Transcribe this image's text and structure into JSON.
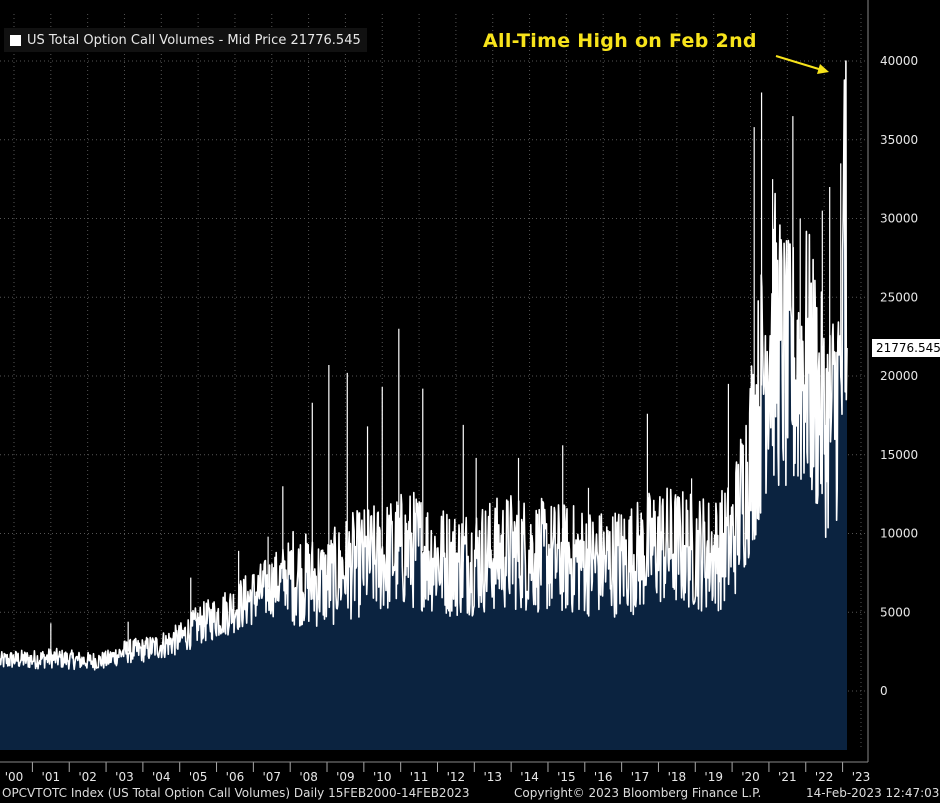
{
  "legend": {
    "label": "US Total Option Call Volumes - Mid Price 21776.545"
  },
  "annotation": {
    "text": "All-Time High on Feb 2nd",
    "color": "#f7e31b"
  },
  "last_value_label": "21776.545",
  "footer": {
    "left": "OPCVTOTC Index (US Total Option Call Volumes)  Daily 15FEB2000-14FEB2023",
    "center": "Copyright© 2023 Bloomberg Finance L.P.",
    "right": "14-Feb-2023 12:47:03"
  },
  "colors": {
    "background": "#000000",
    "area_fill": "#0b2340",
    "line": "#ffffff",
    "grid": "#555555"
  },
  "chart_data": {
    "type": "area",
    "title": "US Total Option Call Volumes - Mid Price 21776.545",
    "x_tick_labels": [
      "'00",
      "'01",
      "'02",
      "'03",
      "'04",
      "'05",
      "'06",
      "'07",
      "'08",
      "'09",
      "'10",
      "'11",
      "'12",
      "'13",
      "'14",
      "'15",
      "'16",
      "'17",
      "'18",
      "'19",
      "'20",
      "'21",
      "'22",
      "'23"
    ],
    "y_tick_labels": [
      "0",
      "5000",
      "10000",
      "15000",
      "20000",
      "25000",
      "30000",
      "35000",
      "40000"
    ],
    "ylim": [
      -3700,
      44000
    ],
    "grid": true,
    "series": [
      {
        "name": "US Total Option Call Volumes - Mid Price",
        "points": [
          [
            2000.12,
            1900
          ],
          [
            2000.5,
            2000
          ],
          [
            2001.0,
            2000
          ],
          [
            2001.5,
            2100
          ],
          [
            2002.0,
            2000
          ],
          [
            2002.5,
            1900
          ],
          [
            2003.0,
            1950
          ],
          [
            2003.5,
            2500
          ],
          [
            2004.0,
            2600
          ],
          [
            2004.5,
            2900
          ],
          [
            2005.0,
            3300
          ],
          [
            2005.5,
            4200
          ],
          [
            2006.0,
            4700
          ],
          [
            2006.5,
            5300
          ],
          [
            2007.0,
            6000
          ],
          [
            2007.5,
            6700
          ],
          [
            2008.0,
            7400
          ],
          [
            2008.5,
            7000
          ],
          [
            2009.0,
            6900
          ],
          [
            2009.5,
            7800
          ],
          [
            2010.0,
            8200
          ],
          [
            2010.5,
            8400
          ],
          [
            2011.0,
            8900
          ],
          [
            2011.5,
            9000
          ],
          [
            2012.0,
            8400
          ],
          [
            2012.5,
            8100
          ],
          [
            2013.0,
            8400
          ],
          [
            2013.5,
            8600
          ],
          [
            2014.0,
            8900
          ],
          [
            2014.5,
            8700
          ],
          [
            2015.0,
            8500
          ],
          [
            2015.5,
            8400
          ],
          [
            2016.0,
            8300
          ],
          [
            2016.5,
            8100
          ],
          [
            2017.0,
            8300
          ],
          [
            2017.5,
            8600
          ],
          [
            2018.0,
            9300
          ],
          [
            2018.5,
            9100
          ],
          [
            2019.0,
            8900
          ],
          [
            2019.5,
            8700
          ],
          [
            2020.0,
            9500
          ],
          [
            2020.25,
            12000
          ],
          [
            2020.5,
            15000
          ],
          [
            2020.75,
            18500
          ],
          [
            2021.0,
            23000
          ],
          [
            2021.25,
            22000
          ],
          [
            2021.5,
            20000
          ],
          [
            2021.75,
            20500
          ],
          [
            2022.0,
            21000
          ],
          [
            2022.25,
            19500
          ],
          [
            2022.5,
            17000
          ],
          [
            2022.75,
            17500
          ],
          [
            2023.0,
            20500
          ],
          [
            2023.09,
            40000
          ],
          [
            2023.12,
            21776.545
          ]
        ]
      }
    ],
    "last_value": 21776.545,
    "annotations": [
      {
        "text": "All-Time High on Feb 2nd",
        "points_to": [
          2023.09,
          40000
        ]
      }
    ]
  }
}
